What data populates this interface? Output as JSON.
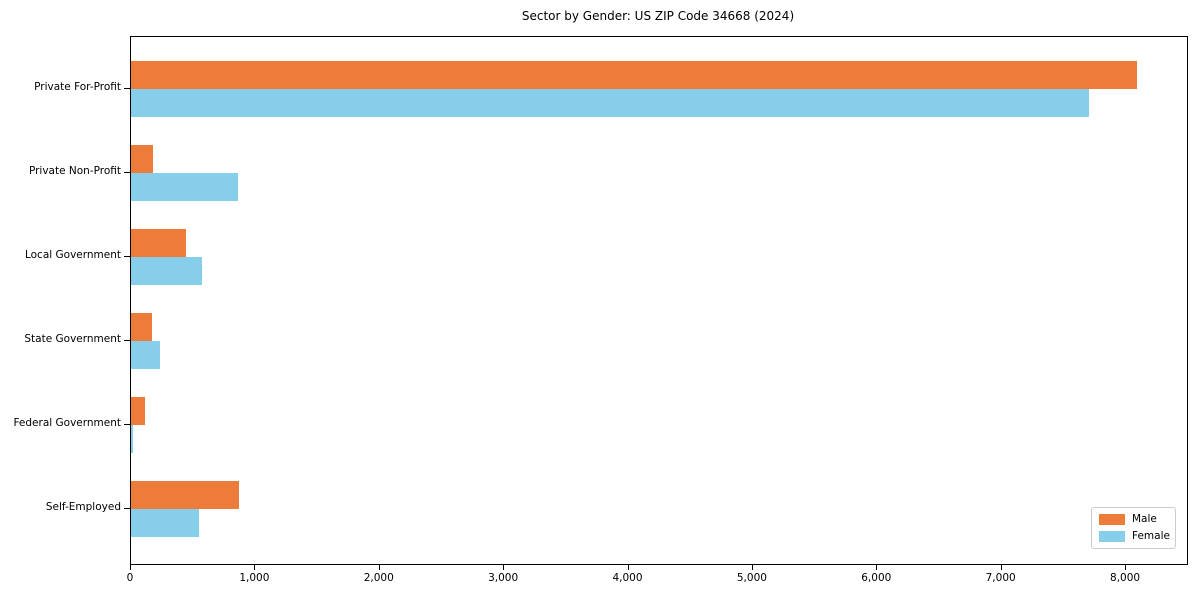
{
  "chart_data": {
    "type": "bar",
    "orientation": "horizontal",
    "title": "Sector by Gender: US ZIP Code 34668 (2024)",
    "categories": [
      "Private For-Profit",
      "Private Non-Profit",
      "Local Government",
      "State Government",
      "Federal Government",
      "Self-Employed"
    ],
    "series": [
      {
        "name": "Male",
        "color": "#ed7b3a",
        "values": [
          8090,
          180,
          440,
          170,
          110,
          865
        ]
      },
      {
        "name": "Female",
        "color": "#87ceeb",
        "values": [
          7700,
          860,
          570,
          235,
          20,
          550
        ]
      }
    ],
    "xlabel": "",
    "ylabel": "",
    "xlim": [
      0,
      8490
    ],
    "x_ticks": [
      0,
      1000,
      2000,
      3000,
      4000,
      5000,
      6000,
      7000,
      8000
    ],
    "x_tick_labels": [
      "0",
      "1,000",
      "2,000",
      "3,000",
      "4,000",
      "5,000",
      "6,000",
      "7,000",
      "8,000"
    ],
    "grid": false,
    "legend_position": "lower right",
    "spine_color": "#000000",
    "legend_border_color": "#cccccc",
    "background_color": "#ffffff"
  }
}
